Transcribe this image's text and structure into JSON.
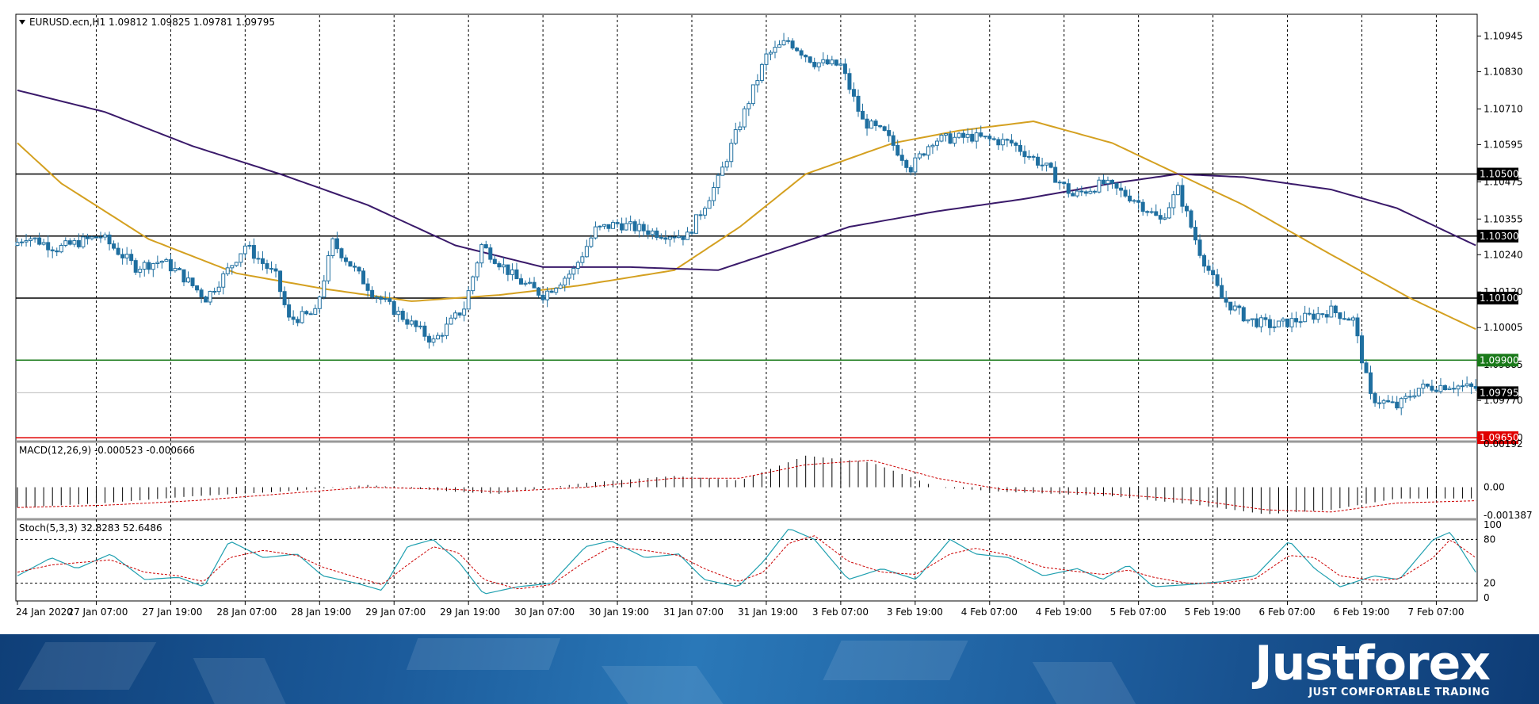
{
  "header": {
    "symbol_line": "EURUSD.ecn,H1  1.09812 1.09825 1.09781 1.09795",
    "macd_label": "MACD(12,26,9) -0.000523 -0.000666",
    "stoch_label": "Stoch(5,3,3) 32.8283 52.6486"
  },
  "price_axis": [
    "1.10945",
    "1.10830",
    "1.10710",
    "1.10595",
    "1.10475",
    "1.10355",
    "1.10240",
    "1.10120",
    "1.10005",
    "1.09885",
    "1.09770",
    "1.09650"
  ],
  "macd_axis": [
    "0.00192",
    "0.00",
    "-0.001387"
  ],
  "stoch_axis": [
    "100",
    "80",
    "20",
    "0"
  ],
  "time_axis": [
    "24 Jan 2020",
    "27 Jan 07:00",
    "27 Jan 19:00",
    "28 Jan 07:00",
    "28 Jan 19:00",
    "29 Jan 07:00",
    "29 Jan 19:00",
    "30 Jan 07:00",
    "30 Jan 19:00",
    "31 Jan 07:00",
    "31 Jan 19:00",
    "3 Feb 07:00",
    "3 Feb 19:00",
    "4 Feb 07:00",
    "4 Feb 19:00",
    "5 Feb 07:00",
    "5 Feb 19:00",
    "6 Feb 07:00",
    "6 Feb 19:00",
    "7 Feb 07:00"
  ],
  "levels": [
    {
      "label": "1.10500",
      "value": 1.105,
      "color": "#000000"
    },
    {
      "label": "1.10300",
      "value": 1.103,
      "color": "#000000"
    },
    {
      "label": "1.10100",
      "value": 1.101,
      "color": "#000000"
    },
    {
      "label": "1.09900",
      "value": 1.099,
      "color": "#1a7a1a"
    },
    {
      "label": "1.09795",
      "value": 1.09795,
      "color": "#000000"
    },
    {
      "label": "1.09650",
      "value": 1.0965,
      "color": "#e00000"
    }
  ],
  "colors": {
    "bull": "#ffffff",
    "bear": "#1f6fa0",
    "candle_outline": "#1f6fa0",
    "ma_fast": "#d4a020",
    "ma_slow": "#3a1a6a",
    "macd_hist": "#000000",
    "macd_signal": "#cc0000",
    "stoch_main": "#20a0b0",
    "stoch_signal": "#cc0000"
  },
  "chart_data": [
    {
      "type": "candlestick",
      "title": "EURUSD.ecn,H1",
      "ylim": [
        1.0964,
        1.1101
      ],
      "x_start": "24 Jan 2020",
      "path_key_points": [
        [
          0,
          1.1027
        ],
        [
          3,
          1.103
        ],
        [
          10,
          1.1026
        ],
        [
          20,
          1.103
        ],
        [
          28,
          1.102
        ],
        [
          34,
          1.1022
        ],
        [
          38,
          1.1018
        ],
        [
          44,
          1.101
        ],
        [
          48,
          1.1017
        ],
        [
          53,
          1.1027
        ],
        [
          60,
          1.1017
        ],
        [
          63,
          1.1003
        ],
        [
          69,
          1.1005
        ],
        [
          73,
          1.1028
        ],
        [
          82,
          1.1012
        ],
        [
          88,
          1.1005
        ],
        [
          96,
          1.0996
        ],
        [
          103,
          1.1007
        ],
        [
          107,
          1.1027
        ],
        [
          115,
          1.1016
        ],
        [
          121,
          1.1011
        ],
        [
          128,
          1.1019
        ],
        [
          133,
          1.1032
        ],
        [
          138,
          1.1034
        ],
        [
          147,
          1.1031
        ],
        [
          154,
          1.103
        ],
        [
          161,
          1.1048
        ],
        [
          167,
          1.107
        ],
        [
          172,
          1.1088
        ],
        [
          177,
          1.1093
        ],
        [
          183,
          1.1086
        ],
        [
          189,
          1.1085
        ],
        [
          194,
          1.1067
        ],
        [
          199,
          1.1063
        ],
        [
          205,
          1.1052
        ],
        [
          210,
          1.1061
        ],
        [
          219,
          1.1062
        ],
        [
          228,
          1.106
        ],
        [
          236,
          1.1052
        ],
        [
          242,
          1.1043
        ],
        [
          249,
          1.1047
        ],
        [
          256,
          1.1042
        ],
        [
          262,
          1.1035
        ],
        [
          266,
          1.1045
        ],
        [
          271,
          1.1025
        ],
        [
          276,
          1.101
        ],
        [
          282,
          1.1003
        ],
        [
          288,
          1.1001
        ],
        [
          296,
          1.1004
        ],
        [
          301,
          1.1006
        ],
        [
          306,
          1.1003
        ],
        [
          310,
          1.0978
        ],
        [
          316,
          1.0975
        ],
        [
          321,
          1.0981
        ],
        [
          328,
          1.0982
        ],
        [
          333,
          1.0981
        ]
      ],
      "ma_fast_key_points": [
        [
          0,
          1.106
        ],
        [
          10,
          1.1047
        ],
        [
          30,
          1.1029
        ],
        [
          50,
          1.1018
        ],
        [
          70,
          1.1013
        ],
        [
          90,
          1.1009
        ],
        [
          110,
          1.1011
        ],
        [
          128,
          1.1014
        ],
        [
          150,
          1.1019
        ],
        [
          165,
          1.1033
        ],
        [
          180,
          1.105
        ],
        [
          200,
          1.106
        ],
        [
          215,
          1.1064
        ],
        [
          232,
          1.1067
        ],
        [
          250,
          1.106
        ],
        [
          265,
          1.105
        ],
        [
          280,
          1.104
        ],
        [
          300,
          1.1024
        ],
        [
          318,
          1.101
        ],
        [
          333,
          1.1
        ]
      ],
      "ma_slow_key_points": [
        [
          0,
          1.1077
        ],
        [
          20,
          1.107
        ],
        [
          40,
          1.1059
        ],
        [
          60,
          1.105
        ],
        [
          80,
          1.104
        ],
        [
          100,
          1.1027
        ],
        [
          120,
          1.102
        ],
        [
          140,
          1.102
        ],
        [
          160,
          1.1019
        ],
        [
          175,
          1.1026
        ],
        [
          190,
          1.1033
        ],
        [
          210,
          1.1038
        ],
        [
          230,
          1.1042
        ],
        [
          250,
          1.1047
        ],
        [
          265,
          1.105
        ],
        [
          280,
          1.1049
        ],
        [
          300,
          1.1045
        ],
        [
          315,
          1.1039
        ],
        [
          333,
          1.1027
        ]
      ]
    },
    {
      "type": "bar",
      "title": "MACD(12,26,9)",
      "ylim": [
        -0.001387,
        0.00192
      ],
      "histogram_key_points": [
        [
          0,
          -0.0009
        ],
        [
          20,
          -0.0007
        ],
        [
          40,
          -0.0004
        ],
        [
          60,
          -0.0002
        ],
        [
          80,
          0.0001
        ],
        [
          100,
          -0.0002
        ],
        [
          110,
          -0.0003
        ],
        [
          130,
          0.0002
        ],
        [
          150,
          0.0005
        ],
        [
          165,
          0.0003
        ],
        [
          180,
          0.0014
        ],
        [
          195,
          0.0011
        ],
        [
          210,
          0.0
        ],
        [
          225,
          -0.0002
        ],
        [
          250,
          -0.0004
        ],
        [
          270,
          -0.0008
        ],
        [
          285,
          -0.0012
        ],
        [
          300,
          -0.001
        ],
        [
          315,
          -0.0005
        ],
        [
          333,
          -0.0005
        ]
      ],
      "signal_key_points": [
        [
          0,
          -0.0009
        ],
        [
          20,
          -0.0008
        ],
        [
          40,
          -0.0006
        ],
        [
          60,
          -0.0003
        ],
        [
          80,
          0.0
        ],
        [
          100,
          -0.0001
        ],
        [
          110,
          -0.0002
        ],
        [
          130,
          0.0
        ],
        [
          150,
          0.0004
        ],
        [
          165,
          0.0004
        ],
        [
          180,
          0.001
        ],
        [
          195,
          0.0012
        ],
        [
          210,
          0.0004
        ],
        [
          225,
          -0.0001
        ],
        [
          250,
          -0.0003
        ],
        [
          270,
          -0.0006
        ],
        [
          285,
          -0.001
        ],
        [
          300,
          -0.0011
        ],
        [
          315,
          -0.0007
        ],
        [
          333,
          -0.0006
        ]
      ]
    },
    {
      "type": "line",
      "title": "Stoch(5,3,3)",
      "ylim": [
        0,
        100
      ],
      "main_key_points": [
        [
          0,
          30
        ],
        [
          8,
          55
        ],
        [
          14,
          40
        ],
        [
          22,
          60
        ],
        [
          30,
          25
        ],
        [
          38,
          28
        ],
        [
          44,
          15
        ],
        [
          50,
          78
        ],
        [
          58,
          55
        ],
        [
          66,
          60
        ],
        [
          72,
          30
        ],
        [
          80,
          20
        ],
        [
          86,
          10
        ],
        [
          92,
          70
        ],
        [
          98,
          80
        ],
        [
          104,
          50
        ],
        [
          110,
          5
        ],
        [
          118,
          15
        ],
        [
          126,
          20
        ],
        [
          134,
          70
        ],
        [
          140,
          78
        ],
        [
          148,
          55
        ],
        [
          156,
          60
        ],
        [
          162,
          25
        ],
        [
          170,
          15
        ],
        [
          176,
          50
        ],
        [
          182,
          95
        ],
        [
          188,
          80
        ],
        [
          196,
          25
        ],
        [
          204,
          40
        ],
        [
          212,
          25
        ],
        [
          220,
          80
        ],
        [
          226,
          60
        ],
        [
          234,
          55
        ],
        [
          242,
          30
        ],
        [
          250,
          40
        ],
        [
          256,
          25
        ],
        [
          262,
          45
        ],
        [
          268,
          15
        ],
        [
          276,
          18
        ],
        [
          284,
          22
        ],
        [
          292,
          30
        ],
        [
          300,
          78
        ],
        [
          306,
          40
        ],
        [
          312,
          15
        ],
        [
          320,
          30
        ],
        [
          326,
          25
        ],
        [
          334,
          80
        ],
        [
          338,
          90
        ],
        [
          344,
          35
        ]
      ],
      "signal_key_points": [
        [
          0,
          35
        ],
        [
          8,
          45
        ],
        [
          14,
          48
        ],
        [
          22,
          52
        ],
        [
          30,
          35
        ],
        [
          38,
          30
        ],
        [
          44,
          22
        ],
        [
          50,
          55
        ],
        [
          58,
          65
        ],
        [
          66,
          58
        ],
        [
          72,
          42
        ],
        [
          80,
          28
        ],
        [
          86,
          18
        ],
        [
          92,
          45
        ],
        [
          98,
          70
        ],
        [
          104,
          62
        ],
        [
          110,
          25
        ],
        [
          118,
          12
        ],
        [
          126,
          18
        ],
        [
          134,
          50
        ],
        [
          140,
          70
        ],
        [
          148,
          65
        ],
        [
          156,
          58
        ],
        [
          162,
          40
        ],
        [
          170,
          22
        ],
        [
          176,
          35
        ],
        [
          182,
          75
        ],
        [
          188,
          85
        ],
        [
          196,
          50
        ],
        [
          204,
          35
        ],
        [
          212,
          32
        ],
        [
          220,
          60
        ],
        [
          226,
          68
        ],
        [
          234,
          58
        ],
        [
          242,
          42
        ],
        [
          250,
          36
        ],
        [
          256,
          32
        ],
        [
          262,
          38
        ],
        [
          268,
          28
        ],
        [
          276,
          20
        ],
        [
          284,
          20
        ],
        [
          292,
          26
        ],
        [
          300,
          58
        ],
        [
          306,
          55
        ],
        [
          312,
          30
        ],
        [
          320,
          24
        ],
        [
          326,
          26
        ],
        [
          334,
          55
        ],
        [
          338,
          80
        ],
        [
          344,
          55
        ]
      ]
    }
  ]
}
